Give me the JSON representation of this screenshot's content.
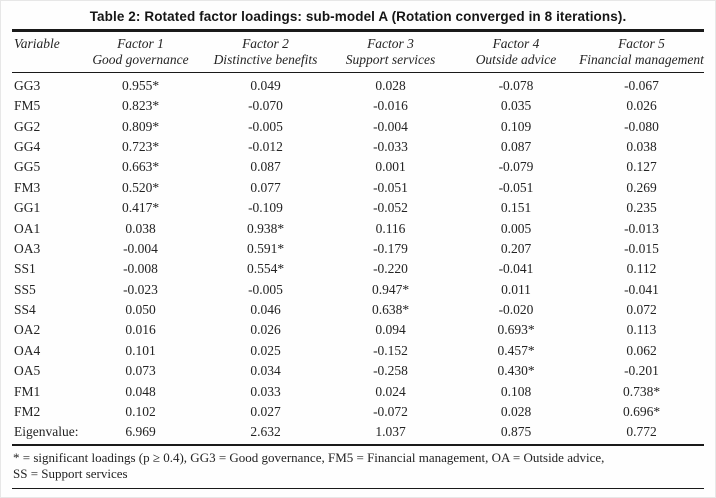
{
  "title": "Table 2: Rotated factor loadings: sub-model A (Rotation converged in 8 iterations).",
  "colors": {
    "background": "#fefefe",
    "text": "#232323",
    "rule": "#1a1a1a"
  },
  "table": {
    "header": {
      "variable": "Variable",
      "factors": [
        {
          "name": "Factor 1",
          "label": "Good governance"
        },
        {
          "name": "Factor 2",
          "label": "Distinctive benefits"
        },
        {
          "name": "Factor 3",
          "label": "Support services"
        },
        {
          "name": "Factor 4",
          "label": "Outside advice"
        },
        {
          "name": "Factor 5",
          "label": "Financial management"
        }
      ]
    },
    "rows": [
      {
        "variable": "GG3",
        "values": [
          "0.955*",
          "0.049",
          "0.028",
          "-0.078",
          "-0.067"
        ]
      },
      {
        "variable": "FM5",
        "values": [
          "0.823*",
          "-0.070",
          "-0.016",
          "0.035",
          "0.026"
        ]
      },
      {
        "variable": "GG2",
        "values": [
          "0.809*",
          "-0.005",
          "-0.004",
          "0.109",
          "-0.080"
        ]
      },
      {
        "variable": "GG4",
        "values": [
          "0.723*",
          "-0.012",
          "-0.033",
          "0.087",
          "0.038"
        ]
      },
      {
        "variable": "GG5",
        "values": [
          "0.663*",
          "0.087",
          "0.001",
          "-0.079",
          "0.127"
        ]
      },
      {
        "variable": "FM3",
        "values": [
          "0.520*",
          "0.077",
          "-0.051",
          "-0.051",
          "0.269"
        ]
      },
      {
        "variable": "GG1",
        "values": [
          "0.417*",
          "-0.109",
          "-0.052",
          "0.151",
          "0.235"
        ]
      },
      {
        "variable": "OA1",
        "values": [
          "0.038",
          "0.938*",
          "0.116",
          "0.005",
          "-0.013"
        ]
      },
      {
        "variable": "OA3",
        "values": [
          "-0.004",
          "0.591*",
          "-0.179",
          "0.207",
          "-0.015"
        ]
      },
      {
        "variable": "SS1",
        "values": [
          "-0.008",
          "0.554*",
          "-0.220",
          "-0.041",
          "0.112"
        ]
      },
      {
        "variable": "SS5",
        "values": [
          "-0.023",
          "-0.005",
          "0.947*",
          "0.011",
          "-0.041"
        ]
      },
      {
        "variable": "SS4",
        "values": [
          "0.050",
          "0.046",
          "0.638*",
          "-0.020",
          "0.072"
        ]
      },
      {
        "variable": "OA2",
        "values": [
          "0.016",
          "0.026",
          "0.094",
          "0.693*",
          "0.113"
        ]
      },
      {
        "variable": "OA4",
        "values": [
          "0.101",
          "0.025",
          "-0.152",
          "0.457*",
          "0.062"
        ]
      },
      {
        "variable": "OA5",
        "values": [
          "0.073",
          "0.034",
          "-0.258",
          "0.430*",
          "-0.201"
        ]
      },
      {
        "variable": "FM1",
        "values": [
          "0.048",
          "0.033",
          "0.024",
          "0.108",
          "0.738*"
        ]
      },
      {
        "variable": "FM2",
        "values": [
          "0.102",
          "0.027",
          "-0.072",
          "0.028",
          "0.696*"
        ]
      }
    ],
    "eigenvalue_row": {
      "label": "Eigenvalue:",
      "values": [
        "6.969",
        "2.632",
        "1.037",
        "0.875",
        "0.772"
      ]
    }
  },
  "footnotes": [
    "* = significant loadings (p ≥ 0.4), GG3 = Good governance, FM5 = Financial management, OA = Outside advice,",
    "SS = Support services"
  ]
}
